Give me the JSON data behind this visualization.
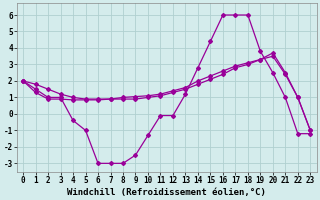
{
  "line1_x": [
    0,
    1,
    2,
    3,
    4,
    5,
    6,
    7,
    8,
    9,
    10,
    11,
    12,
    13,
    14,
    15,
    16,
    17,
    18,
    19,
    20,
    21,
    22,
    23
  ],
  "line1_y": [
    2.0,
    1.5,
    1.0,
    1.0,
    -0.4,
    -1.0,
    -3.0,
    -3.0,
    -3.0,
    -2.5,
    -1.3,
    -0.1,
    -0.1,
    1.2,
    2.8,
    4.4,
    6.0,
    6.0,
    6.0,
    3.8,
    2.5,
    1.0,
    -1.2,
    -1.2
  ],
  "line2_x": [
    0,
    1,
    2,
    3,
    4,
    5,
    6,
    7,
    8,
    9,
    10,
    11,
    12,
    13,
    14,
    15,
    16,
    17,
    18,
    19,
    20,
    21,
    22,
    23
  ],
  "line2_y": [
    2.0,
    1.3,
    0.9,
    0.9,
    0.85,
    0.85,
    0.85,
    0.9,
    1.0,
    1.05,
    1.1,
    1.2,
    1.4,
    1.6,
    2.0,
    2.3,
    2.6,
    2.9,
    3.1,
    3.3,
    3.5,
    2.4,
    1.0,
    -1.0
  ],
  "line3_x": [
    0,
    1,
    2,
    3,
    4,
    5,
    6,
    7,
    8,
    9,
    10,
    11,
    12,
    13,
    14,
    15,
    16,
    17,
    18,
    19,
    20,
    21,
    22,
    23
  ],
  "line3_y": [
    2.0,
    1.8,
    1.5,
    1.2,
    1.0,
    0.9,
    0.9,
    0.9,
    0.9,
    0.9,
    1.0,
    1.1,
    1.3,
    1.5,
    1.8,
    2.1,
    2.4,
    2.8,
    3.0,
    3.3,
    3.7,
    2.5,
    1.0,
    -1.0
  ],
  "line_color": "#990099",
  "bg_color": "#d4ecec",
  "grid_color": "#b0d0d0",
  "xlabel": "Windchill (Refroidissement éolien,°C)",
  "xlim": [
    -0.5,
    23.5
  ],
  "ylim": [
    -3.5,
    6.7
  ],
  "xticks": [
    0,
    1,
    2,
    3,
    4,
    5,
    6,
    7,
    8,
    9,
    10,
    11,
    12,
    13,
    14,
    15,
    16,
    17,
    18,
    19,
    20,
    21,
    22,
    23
  ],
  "yticks": [
    -3,
    -2,
    -1,
    0,
    1,
    2,
    3,
    4,
    5,
    6
  ],
  "marker": "D",
  "markersize": 2.0,
  "linewidth": 0.9,
  "xlabel_fontsize": 6.5,
  "tick_fontsize": 5.5
}
